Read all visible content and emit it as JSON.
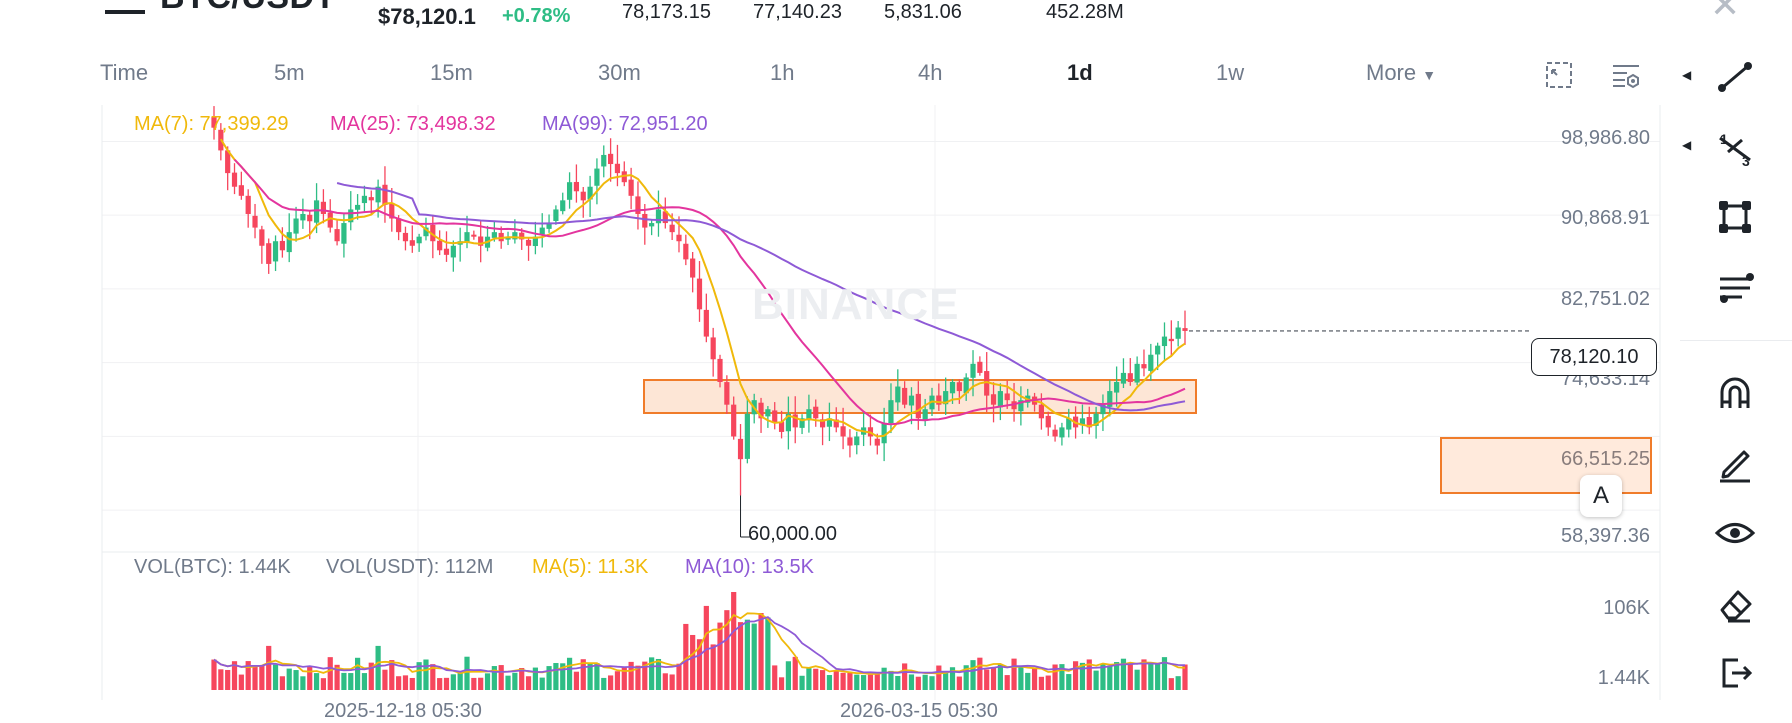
{
  "header": {
    "pair": "BTC/USDT",
    "price": "$78,120.1",
    "change": "+0.78%",
    "high": "78,173.15",
    "low": "77,140.23",
    "vol_btc": "5,831.06",
    "vol_usdt": "452.28M"
  },
  "intervals": [
    "Time",
    "5m",
    "15m",
    "30m",
    "1h",
    "4h",
    "1d",
    "1w"
  ],
  "active_interval": "1d",
  "more_label": "More",
  "ma_legend": {
    "ma7": "MA(7): 77,399.29",
    "ma25": "MA(25): 73,498.32",
    "ma99": "MA(99): 72,951.20"
  },
  "y_axis_labels": [
    "98,986.80",
    "90,868.91",
    "82,751.02",
    "74,633.14",
    "66,515.25",
    "58,397.36"
  ],
  "current_price_tag": "78,120.10",
  "low_marker": "60,000.00",
  "watermark": "BINANCE",
  "volume_legend": {
    "vol_btc": "VOL(BTC): 1.44K",
    "vol_usdt": "VOL(USDT): 112M",
    "ma5": "MA(5): 11.3K",
    "ma10": "MA(10): 13.5K"
  },
  "volume_axis_labels": [
    "106K",
    "1.44K"
  ],
  "x_axis_labels": [
    "2025-12-18 05:30",
    "2026-03-15 05:30"
  ],
  "a_badge": "A",
  "colors": {
    "up": "#2ebd85",
    "down": "#f6465d",
    "ma7": "#f0b90b",
    "ma25": "#e3359e",
    "ma99": "#8e5ad6",
    "zone_fill": "#fde6d6",
    "zone_border": "#f07c2a"
  },
  "toolbar_icons": [
    "line-tool-icon",
    "fib-tool-icon",
    "rectangle-tool-icon",
    "indicator-tool-icon",
    "magnet-icon",
    "pencil-icon",
    "eye-icon",
    "eraser-icon",
    "exit-icon"
  ],
  "chart_data": {
    "type": "candlestick",
    "timeframe": "1d",
    "ylim": [
      54000,
      103000
    ],
    "y_ticks": [
      98986.8,
      90868.91,
      82751.02,
      74633.14,
      66515.25,
      58397.36
    ],
    "key_levels": {
      "current": 78120.1,
      "low": 60000.0
    },
    "ma_latest": {
      "MA(7)": 77399.29,
      "MA(25)": 73498.32,
      "MA(99)": 72951.2
    },
    "volume_latest": {
      "VOL(BTC)": "1.44K",
      "VOL(USDT)": "112M",
      "MA(5)": "11.3K",
      "MA(10)": "13.5K"
    },
    "volume_ylim_label": "106K",
    "x_labels": [
      "2025-12-18 05:30",
      "2026-03-15 05:30"
    ],
    "closes": [
      100500,
      98000,
      95500,
      94000,
      93000,
      91000,
      89500,
      87500,
      85500,
      88000,
      87000,
      89000,
      90500,
      91000,
      90200,
      92500,
      91000,
      89500,
      88000,
      90000,
      91500,
      92000,
      93000,
      92500,
      94000,
      92000,
      90500,
      89000,
      88000,
      87500,
      88500,
      89500,
      88000,
      87000,
      86500,
      87500,
      88000,
      89000,
      88500,
      87500,
      88500,
      89000,
      88000,
      88500,
      89000,
      88200,
      87500,
      88500,
      89500,
      90000,
      91500,
      92500,
      94500,
      93500,
      92500,
      94000,
      96000,
      97500,
      96500,
      95500,
      94500,
      93000,
      91000,
      89500,
      90000,
      91500,
      90000,
      89000,
      88000,
      86000,
      84000,
      80500,
      77500,
      75000,
      72500,
      70000,
      66500,
      64000,
      69000,
      70500,
      68500,
      69500,
      68000,
      67000,
      69000,
      67500,
      68500,
      69500,
      68500,
      67500,
      68500,
      67500,
      66500,
      65500,
      66500,
      67500,
      66500,
      65500,
      68000,
      70500,
      72000,
      70000,
      71000,
      68500,
      69500,
      71000,
      70000,
      71500,
      72500,
      71500,
      73000,
      74500,
      73500,
      71000,
      70000,
      71500,
      70500,
      69500,
      70500,
      71000,
      70000,
      68500,
      67500,
      66500,
      67500,
      68500,
      67500,
      68500,
      67500,
      69000,
      70000,
      71500,
      72500,
      73500,
      72500,
      74500,
      74000,
      75500,
      76500,
      77500,
      77000,
      78500,
      78120
    ]
  }
}
